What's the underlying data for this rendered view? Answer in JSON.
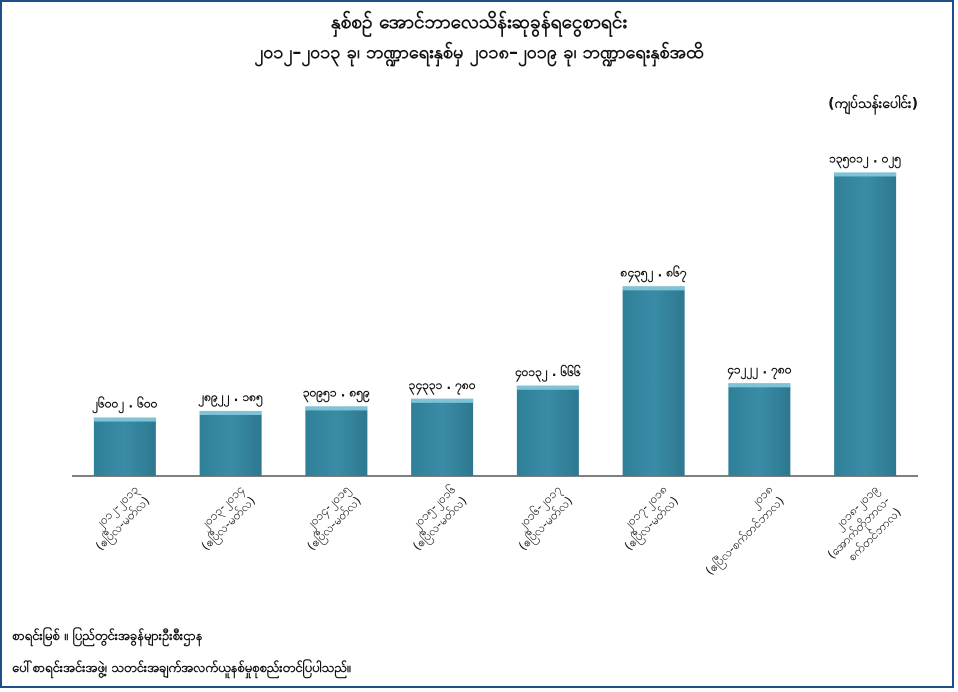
{
  "chart_data": {
    "type": "bar",
    "title": "နှစ်စဉ် အောင်ဘာလေသိန်းဆုခွန်ရငွေစာရင်း",
    "subtitle": "၂၀၁၂–၂၀၁၃ ခု၊ ဘဏ္ဍာရေးနှစ်မှ ၂၀၁၈–၂၀၁၉ ခု၊ ဘဏ္ဍာရေးနှစ်အထိ",
    "unit": "(ကျပ်သန်းပေါင်း)",
    "categories": [
      [
        "၂၀၁၂-၂၀၁၃",
        "(ဧပြီလ-မတ်လ)"
      ],
      [
        "၂၀၁၃-၂၀၁၄",
        "(ဧပြီလ-မတ်လ)"
      ],
      [
        "၂၀၁၄-၂၀၁၅",
        "(ဧပြီလ-မတ်လ)"
      ],
      [
        "၂၀၁၅-၂၀၁၆",
        "(ဧပြီလ-မတ်လ)"
      ],
      [
        "၂၀၁၆-၂၀၁၇",
        "(ဧပြီလ-မတ်လ)"
      ],
      [
        "၂၀၁၇-၂၀၁၈",
        "(ဧပြီလ-မတ်လ)"
      ],
      [
        "၂၀၁၈",
        "(ဧပြီလ-စက်တင်ဘာလ)"
      ],
      [
        "၂၀၁၈-၂၀၁၉",
        "(အောက်တိုဘာလ-",
        "စက်တင်ဘာလ)"
      ]
    ],
    "values": [
      26002.6,
      28922.185,
      30951.859,
      34331.78,
      40132.666,
      84352.867,
      41222.78,
      135012.025
    ],
    "value_labels": [
      "၂၆၀၀၂ . ၆၀၀",
      "၂၈၉၂၂ . ၁၈၅",
      "၃၀၉၅၁ . ၈၅၉",
      "၃၄၃၃၁ . ၇၈၀",
      "၄၀၁၃၂ . ၆၆၆",
      "၈၄၃၅၂ . ၈၆၇",
      "၄၁၂၂၂ . ၇၈၀",
      "၁၃၅၀၁၂ . ၀၂၅"
    ],
    "ylim": [
      0,
      145000
    ],
    "grid": false,
    "legend": "none",
    "bar_color": "#3a8ca6"
  },
  "source": {
    "line1": "စာရင်းမြစ် ။ ပြည်တွင်းအခွန်များဦးစီးဌာန",
    "line2": "ပေါ်စာရင်းအင်းအဖွဲ့၊ သတင်းအချက်အလက်ယူနစ်မှုစုစည်းတင်ပြပါသည်။"
  }
}
